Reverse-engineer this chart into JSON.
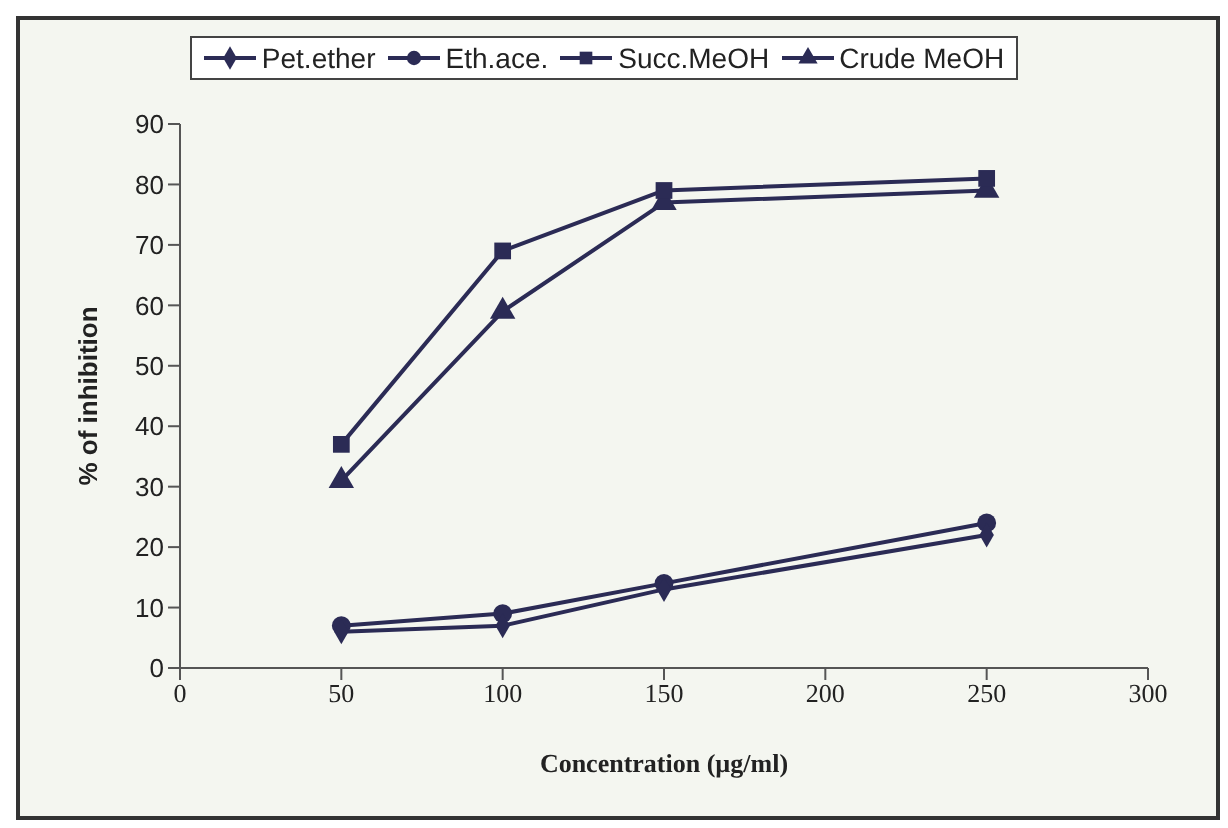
{
  "chart_data": {
    "type": "line",
    "xlabel": "Concentration (µg/ml)",
    "ylabel": "% of inhibition",
    "x": [
      50,
      100,
      150,
      250
    ],
    "series": [
      {
        "name": "Pet.ether",
        "color": "#2b2b55",
        "values": [
          6,
          7,
          13,
          22
        ],
        "marker": "diamond"
      },
      {
        "name": "Eth.ace.",
        "color": "#2b2b55",
        "values": [
          7,
          9,
          14,
          24
        ],
        "marker": "circle"
      },
      {
        "name": "Succ.MeOH",
        "color": "#2b2b55",
        "values": [
          37,
          69,
          79,
          81
        ],
        "marker": "square"
      },
      {
        "name": "Crude MeOH",
        "color": "#2b2b55",
        "values": [
          31,
          59,
          77,
          79
        ],
        "marker": "triangle"
      }
    ],
    "xlim": [
      0,
      300
    ],
    "xticks": [
      0,
      50,
      100,
      150,
      200,
      250,
      300
    ],
    "ylim": [
      0,
      90
    ],
    "yticks": [
      0,
      10,
      20,
      30,
      40,
      50,
      60,
      70,
      80,
      90
    ],
    "grid": false,
    "legend": "top"
  }
}
